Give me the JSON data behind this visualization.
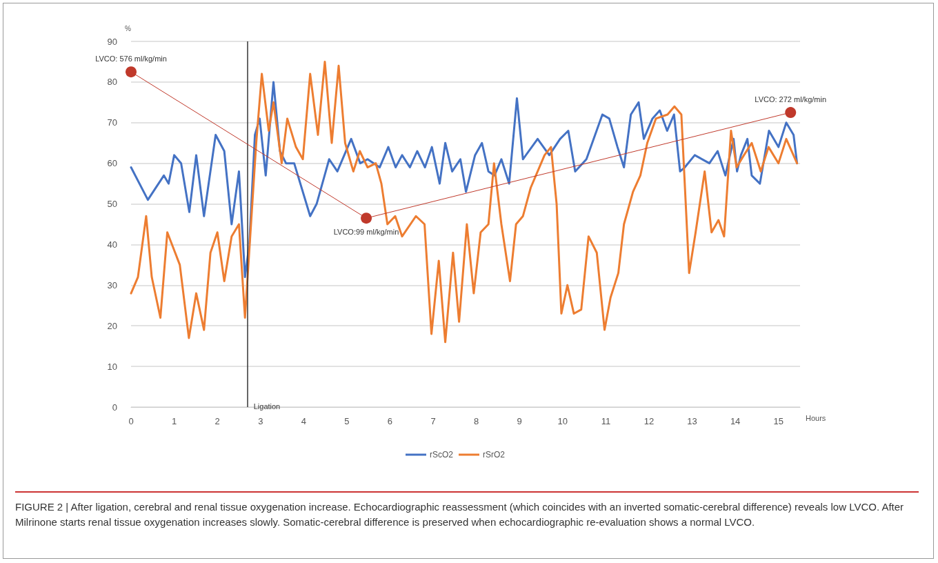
{
  "chart_data": {
    "type": "line",
    "xlabel": "Hours",
    "ylabel": "%",
    "xlim": [
      0,
      15.5
    ],
    "xticks": [
      0,
      1,
      2,
      3,
      4,
      5,
      6,
      7,
      8,
      9,
      10,
      11,
      12,
      13,
      14,
      15
    ],
    "ylim": [
      0,
      90
    ],
    "yticks": [
      0,
      10,
      20,
      30,
      40,
      50,
      60,
      70,
      80,
      90
    ],
    "grid": "y",
    "legend": "bottom",
    "marker": "none",
    "line_style": "solid",
    "series": [
      {
        "name": "rScO2",
        "color": "#4472c4",
        "x": [
          0,
          0.39,
          0.76,
          0.87,
          1.0,
          1.16,
          1.35,
          1.51,
          1.69,
          1.96,
          2.16,
          2.33,
          2.5,
          2.64,
          2.74,
          2.87,
          2.98,
          3.12,
          3.3,
          3.45,
          3.59,
          3.78,
          4.15,
          4.3,
          4.59,
          4.78,
          5.1,
          5.31,
          5.48,
          5.76,
          5.96,
          6.13,
          6.28,
          6.46,
          6.63,
          6.81,
          6.97,
          7.15,
          7.28,
          7.44,
          7.63,
          7.76,
          7.97,
          8.13,
          8.28,
          8.42,
          8.58,
          8.76,
          8.94,
          9.08,
          9.42,
          9.69,
          9.94,
          10.13,
          10.29,
          10.55,
          10.92,
          11.08,
          11.27,
          11.42,
          11.58,
          11.76,
          11.88,
          12.08,
          12.25,
          12.42,
          12.58,
          12.72,
          12.83,
          13.06,
          13.4,
          13.59,
          13.77,
          13.96,
          14.04,
          14.13,
          14.28,
          14.38,
          14.57,
          14.78,
          15.0,
          15.18,
          15.35,
          15.43
        ],
        "values": [
          59,
          51,
          57,
          55,
          62,
          60,
          48,
          62,
          47,
          67,
          63,
          45,
          58,
          32,
          40,
          67,
          71,
          57,
          80,
          63,
          60,
          60,
          47,
          50,
          61,
          58,
          66,
          60,
          61,
          59,
          64,
          59,
          62,
          59,
          63,
          59,
          64,
          55,
          65,
          58,
          61,
          53,
          62,
          65,
          58,
          57,
          61,
          55,
          76,
          61,
          66,
          62,
          66,
          68,
          58,
          61,
          72,
          71,
          64,
          59,
          72,
          75,
          66,
          71,
          73,
          68,
          72,
          58,
          59,
          62,
          60,
          63,
          57,
          66,
          58,
          62,
          66,
          57,
          55,
          68,
          64,
          70,
          67,
          60
        ]
      },
      {
        "name": "rSrO2",
        "color": "#ed7d31",
        "x": [
          0,
          0.16,
          0.35,
          0.48,
          0.68,
          0.84,
          1.13,
          1.34,
          1.51,
          1.69,
          1.84,
          2.0,
          2.16,
          2.33,
          2.5,
          2.64,
          2.9,
          3.03,
          3.19,
          3.3,
          3.49,
          3.62,
          3.82,
          3.98,
          4.15,
          4.33,
          4.49,
          4.65,
          4.81,
          4.96,
          5.15,
          5.3,
          5.48,
          5.67,
          5.8,
          5.94,
          6.12,
          6.28,
          6.6,
          6.8,
          6.96,
          7.13,
          7.28,
          7.46,
          7.6,
          7.78,
          7.94,
          8.1,
          8.28,
          8.41,
          8.58,
          8.78,
          8.92,
          9.08,
          9.26,
          9.58,
          9.73,
          9.86,
          9.97,
          10.11,
          10.26,
          10.43,
          10.6,
          10.79,
          10.97,
          11.11,
          11.29,
          11.42,
          11.63,
          11.8,
          11.96,
          12.16,
          12.43,
          12.59,
          12.75,
          12.93,
          13.08,
          13.29,
          13.45,
          13.61,
          13.74,
          13.9,
          14.03,
          14.2,
          14.38,
          14.59,
          14.77,
          15.0,
          15.18,
          15.43
        ],
        "values": [
          28,
          32,
          47,
          32,
          22,
          43,
          35,
          17,
          28,
          19,
          38,
          43,
          31,
          42,
          45,
          22,
          65,
          82,
          68,
          75,
          60,
          71,
          64,
          61,
          82,
          67,
          85,
          65,
          84,
          65,
          58,
          63,
          59,
          60,
          55,
          45,
          47,
          42,
          47,
          45,
          18,
          36,
          16,
          38,
          21,
          45,
          28,
          43,
          45,
          60,
          45,
          31,
          45,
          47,
          54,
          62,
          64,
          50,
          23,
          30,
          23,
          24,
          42,
          38,
          19,
          27,
          33,
          45,
          53,
          57,
          65,
          71,
          72,
          74,
          72,
          33,
          43,
          58,
          43,
          46,
          42,
          68,
          59,
          62,
          65,
          58,
          64,
          60,
          66,
          60
        ]
      },
      {
        "color": "#c0392b",
        "marker": "circle",
        "x": [
          0,
          5.45,
          15.28
        ],
        "values": [
          82.5,
          46.5,
          72.5
        ]
      }
    ],
    "ref_lines": [
      {
        "axis": "x",
        "value": 2.7,
        "label": "Ligation",
        "color": "#333333"
      }
    ],
    "annotations": [
      {
        "text": "LVCO: 576 ml/kg/min",
        "x": 0,
        "y": 82.5
      },
      {
        "text": "LVCO:99 ml/kg/min",
        "x": 5.45,
        "y": 46.5
      },
      {
        "text": "LVCO: 272 ml/kg/min",
        "x": 15.28,
        "y": 72.5
      },
      "FIGURE 2 | After ligation, cerebral and renal tissue oxygenation increase. Echocardiographic reassessment (which coincides with an inverted somatic-cerebral difference) reveals low LVCO. After Milrinone starts renal tissue oxygenation increases slowly. Somatic-cerebral difference is preserved when echocardiographic re-evaluation shows a normal LVCO."
    ]
  }
}
